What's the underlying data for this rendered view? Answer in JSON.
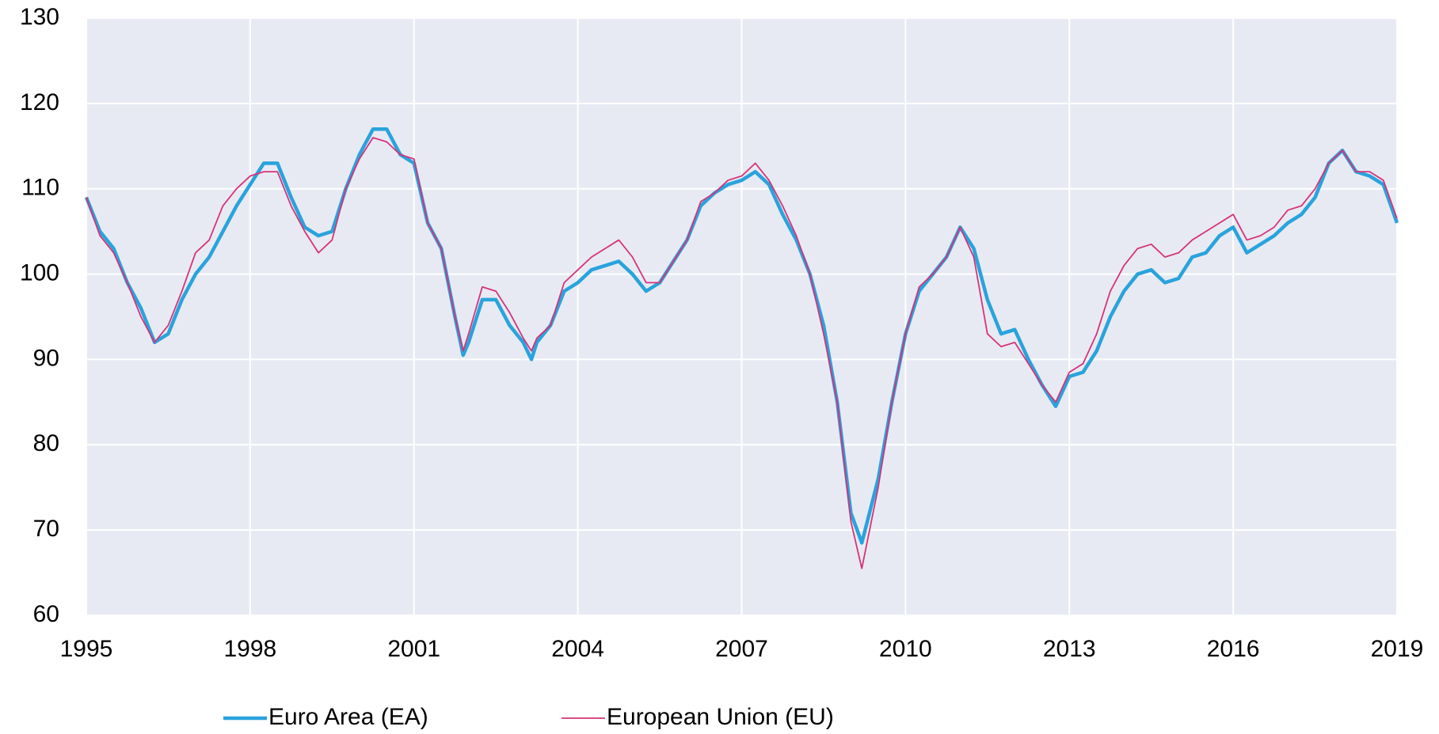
{
  "chart_data": {
    "type": "line",
    "x": [
      1995.0,
      1995.25,
      1995.5,
      1995.75,
      1996.0,
      1996.25,
      1996.5,
      1996.75,
      1997.0,
      1997.25,
      1997.5,
      1997.75,
      1998.0,
      1998.25,
      1998.5,
      1998.75,
      1999.0,
      1999.25,
      1999.5,
      1999.75,
      2000.0,
      2000.25,
      2000.5,
      2000.75,
      2001.0,
      2001.25,
      2001.5,
      2001.75,
      2001.9,
      2002.0,
      2002.25,
      2002.5,
      2002.75,
      2003.0,
      2003.15,
      2003.25,
      2003.5,
      2003.75,
      2004.0,
      2004.25,
      2004.5,
      2004.75,
      2005.0,
      2005.25,
      2005.5,
      2005.75,
      2006.0,
      2006.25,
      2006.5,
      2006.75,
      2007.0,
      2007.25,
      2007.5,
      2007.75,
      2008.0,
      2008.25,
      2008.5,
      2008.75,
      2009.0,
      2009.2,
      2009.5,
      2009.75,
      2010.0,
      2010.25,
      2010.5,
      2010.75,
      2011.0,
      2011.25,
      2011.5,
      2011.75,
      2012.0,
      2012.25,
      2012.5,
      2012.75,
      2013.0,
      2013.25,
      2013.5,
      2013.75,
      2014.0,
      2014.25,
      2014.5,
      2014.75,
      2015.0,
      2015.25,
      2015.5,
      2015.75,
      2016.0,
      2016.25,
      2016.5,
      2016.75,
      2017.0,
      2017.25,
      2017.5,
      2017.75,
      2018.0,
      2018.25,
      2018.5,
      2018.75,
      2019.0
    ],
    "series": [
      {
        "name": "Euro Area (EA)",
        "color": "#29a3dc",
        "line_width": 4.5,
        "values": [
          109,
          105,
          103,
          99,
          96,
          92,
          93,
          97,
          100,
          102,
          105,
          108,
          110.5,
          113,
          113,
          109,
          105.5,
          104.5,
          105,
          110,
          114,
          117,
          117,
          114,
          113,
          106,
          103,
          95,
          90.5,
          92,
          97,
          97,
          94,
          92,
          90,
          92,
          94,
          98,
          99,
          100.5,
          101,
          101.5,
          100,
          98,
          99,
          101.5,
          104,
          108,
          109.5,
          110.5,
          111,
          112,
          110.5,
          107,
          104,
          100,
          94,
          85,
          72,
          68.5,
          76,
          85,
          93,
          98,
          100,
          102,
          105.5,
          103,
          97,
          93,
          93.5,
          90,
          87,
          84.5,
          88,
          88.5,
          91,
          95,
          98,
          100,
          100.5,
          99,
          99.5,
          102,
          102.5,
          104.5,
          105.5,
          102.5,
          103.5,
          104.5,
          106,
          107,
          109,
          113,
          114.5,
          112,
          111.5,
          110.5,
          106
        ]
      },
      {
        "name": "European Union (EU)",
        "color": "#d6337a",
        "line_width": 1.8,
        "values": [
          109,
          104.5,
          102.5,
          99,
          95,
          92,
          94,
          98,
          102.5,
          104,
          108,
          110,
          111.5,
          112,
          112,
          108,
          105,
          102.5,
          104,
          110,
          113.5,
          116,
          115.5,
          114,
          113.5,
          106,
          103,
          95,
          91,
          93,
          98.5,
          98,
          95.5,
          92.5,
          91,
          92.5,
          94,
          99,
          100.5,
          102,
          103,
          104,
          102,
          99,
          99,
          101.5,
          104,
          108.5,
          109.5,
          111,
          111.5,
          113,
          111,
          108,
          104.5,
          100,
          93,
          85,
          71,
          65.5,
          75,
          85,
          93,
          98.5,
          100,
          102,
          105.5,
          102,
          93,
          91.5,
          92,
          89.5,
          87,
          85,
          88.5,
          89.5,
          93,
          98,
          101,
          103,
          103.5,
          102,
          102.5,
          104,
          105,
          106,
          107,
          104,
          104.5,
          105.5,
          107.5,
          108,
          110,
          113,
          114.5,
          112,
          112,
          111,
          106.5
        ]
      }
    ],
    "xlim": [
      1995,
      2019
    ],
    "xticks": [
      1995,
      1998,
      2001,
      2004,
      2007,
      2010,
      2013,
      2016,
      2019
    ],
    "ylim": [
      60,
      130
    ],
    "yticks": [
      60,
      70,
      80,
      90,
      100,
      110,
      120,
      130
    ],
    "grid": true,
    "legend": "bottom"
  }
}
